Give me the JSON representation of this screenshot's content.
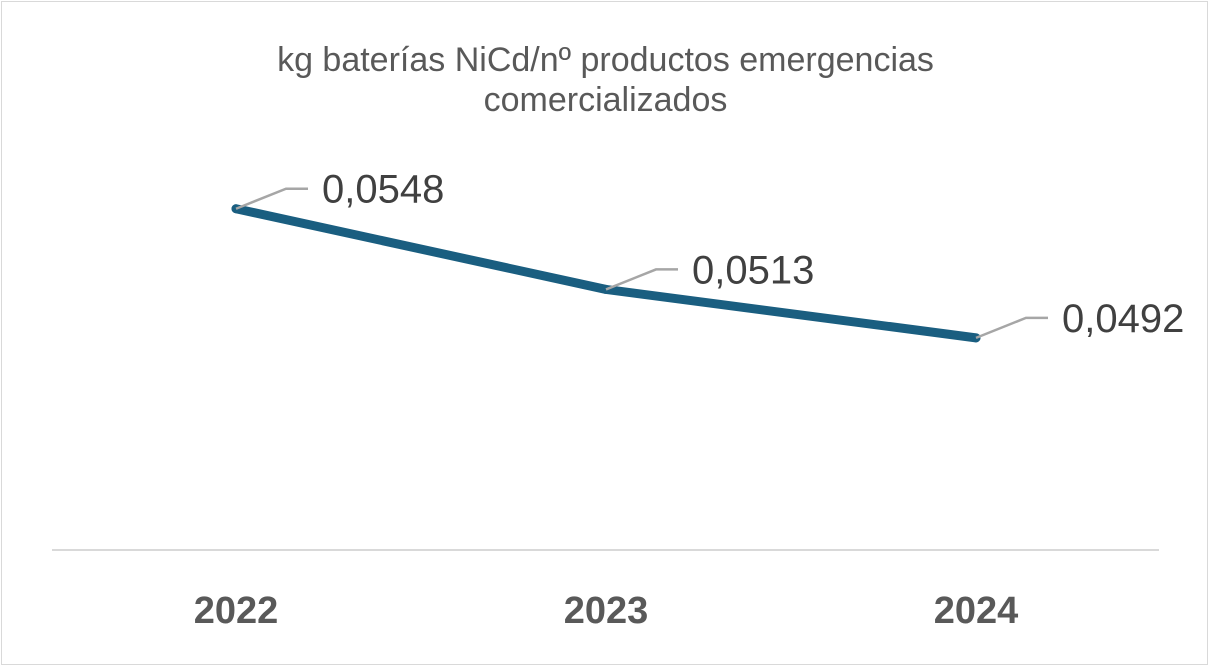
{
  "chart_data": {
    "type": "line",
    "title_lines": [
      "kg baterías NiCd/nº productos emergencias",
      "comercializados"
    ],
    "categories": [
      "2022",
      "2023",
      "2024"
    ],
    "series": [
      {
        "values": [
          0.0548,
          0.0513,
          0.0492
        ]
      }
    ],
    "data_labels": [
      "0,0548",
      "0,0513",
      "0,0492"
    ],
    "xlabel": "",
    "ylabel": "",
    "ylim": [
      0.04,
      0.057
    ],
    "grid": false,
    "legend": "none",
    "colors": {
      "line": "#1a5e80",
      "leader": "#a6a6a6",
      "axis": "#d9d9d9",
      "title": "#595959",
      "tick": "#595959",
      "label": "#404040"
    }
  }
}
